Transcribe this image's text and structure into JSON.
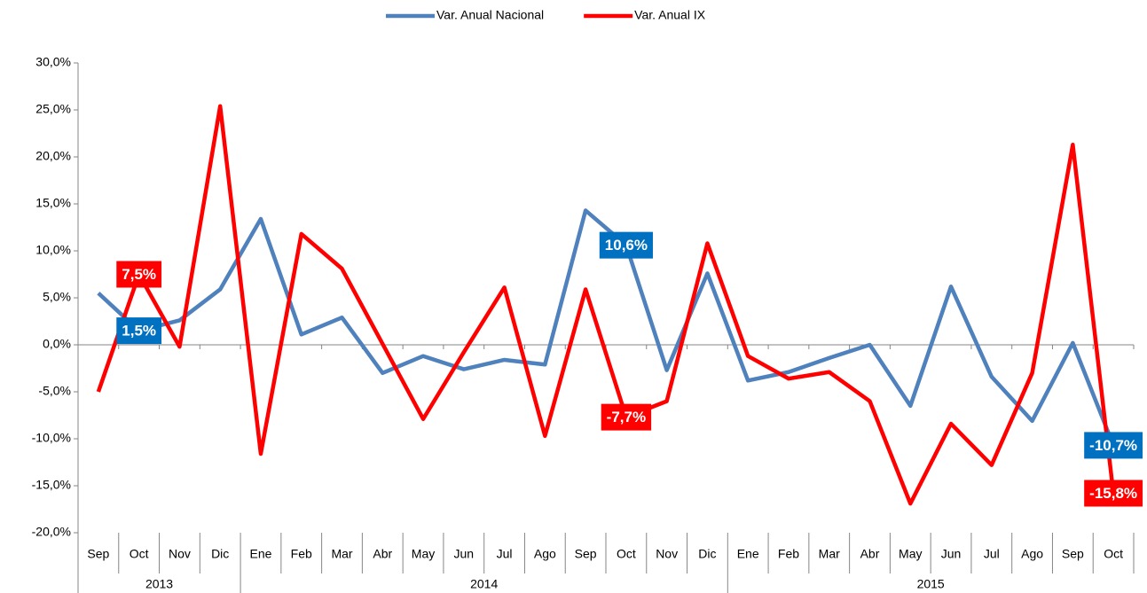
{
  "chart_data": {
    "type": "line",
    "categories": [
      [
        "Sep",
        "2013"
      ],
      [
        "Oct",
        null
      ],
      [
        "Nov",
        null
      ],
      [
        "Dic",
        null
      ],
      [
        "Ene",
        "2014"
      ],
      [
        "Feb",
        null
      ],
      [
        "Mar",
        null
      ],
      [
        "Abr",
        null
      ],
      [
        "May",
        null
      ],
      [
        "Jun",
        null
      ],
      [
        "Jul",
        null
      ],
      [
        "Ago",
        null
      ],
      [
        "Sep",
        null
      ],
      [
        "Oct",
        null
      ],
      [
        "Nov",
        null
      ],
      [
        "Dic",
        null
      ],
      [
        "Ene",
        "2015"
      ],
      [
        "Feb",
        null
      ],
      [
        "Mar",
        null
      ],
      [
        "Abr",
        null
      ],
      [
        "May",
        null
      ],
      [
        "Jun",
        null
      ],
      [
        "Jul",
        null
      ],
      [
        "Ago",
        null
      ],
      [
        "Sep",
        null
      ],
      [
        "Oct",
        null
      ]
    ],
    "series": [
      {
        "name": "Var. Anual Nacional",
        "color": "#4f81bd",
        "label_color": "#0070c0",
        "values": [
          5.5,
          1.5,
          2.6,
          5.9,
          13.4,
          1.1,
          2.9,
          -3.0,
          -1.2,
          -2.6,
          -1.6,
          -2.1,
          14.3,
          10.6,
          -2.7,
          7.6,
          -3.8,
          -2.9,
          -1.4,
          0.0,
          -6.5,
          6.2,
          -3.4,
          -8.1,
          0.2,
          -10.7
        ],
        "value_labels": [
          null,
          "1,5%",
          null,
          null,
          null,
          null,
          null,
          null,
          null,
          null,
          null,
          null,
          null,
          "10,6%",
          null,
          null,
          null,
          null,
          null,
          null,
          null,
          null,
          null,
          null,
          null,
          "-10,7%"
        ]
      },
      {
        "name": "Var. Anual IX",
        "color": "#ff0000",
        "label_color": "#ff0000",
        "values": [
          -5.0,
          7.5,
          -0.2,
          25.4,
          -11.6,
          11.8,
          8.1,
          0.1,
          -7.9,
          -0.8,
          6.1,
          -9.7,
          5.9,
          -7.7,
          -6.0,
          10.8,
          -1.2,
          -3.6,
          -2.9,
          -6.0,
          -16.9,
          -8.4,
          -12.8,
          -3.0,
          21.3,
          -15.8
        ],
        "value_labels": [
          null,
          "7,5%",
          null,
          null,
          null,
          null,
          null,
          null,
          null,
          null,
          null,
          null,
          null,
          "-7,7%",
          null,
          null,
          null,
          null,
          null,
          null,
          null,
          null,
          null,
          null,
          null,
          "-15,8%"
        ]
      }
    ],
    "ylim": [
      -20,
      30
    ],
    "yticks": [
      {
        "value": -20,
        "label": "-20,0%"
      },
      {
        "value": -15,
        "label": "-15,0%"
      },
      {
        "value": -10,
        "label": "-10,0%"
      },
      {
        "value": -5,
        "label": "-5,0%"
      },
      {
        "value": 0,
        "label": "0,0%"
      },
      {
        "value": 5,
        "label": "5,0%"
      },
      {
        "value": 10,
        "label": "10,0%"
      },
      {
        "value": 15,
        "label": "15,0%"
      },
      {
        "value": 20,
        "label": "20,0%"
      },
      {
        "value": 25,
        "label": "25,0%"
      },
      {
        "value": 30,
        "label": "30,0%"
      }
    ],
    "legend": "top"
  }
}
